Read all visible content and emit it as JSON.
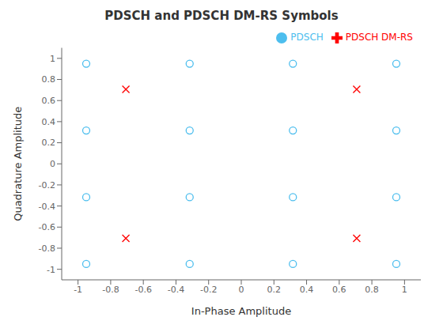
{
  "chart_data": {
    "type": "scatter",
    "title": "PDSCH and PDSCH DM-RS Symbols",
    "xlabel": "In-Phase Amplitude",
    "ylabel": "Quadrature Amplitude",
    "series": [
      {
        "name": "PDSCH",
        "color": "#4DBEEE",
        "marker": "circle",
        "x": [
          -0.9497,
          -0.9497,
          -0.9497,
          -0.9497,
          -0.3162,
          -0.3162,
          -0.3162,
          -0.3162,
          0.3162,
          0.3162,
          0.3162,
          0.3162,
          0.9497,
          0.9497,
          0.9497,
          0.9497
        ],
        "values": [
          0.9497,
          0.3162,
          -0.3162,
          -0.9497,
          0.9497,
          0.3162,
          -0.3162,
          -0.9497,
          0.9497,
          0.3162,
          -0.3162,
          -0.9497,
          0.9497,
          0.3162,
          -0.3162,
          -0.9497
        ]
      },
      {
        "name": "PDSCH DM-RS",
        "color": "#FF0000",
        "marker": "x",
        "x": [
          -0.7071,
          -0.7071,
          0.7071,
          0.7071
        ],
        "values": [
          0.7071,
          -0.7071,
          0.7071,
          -0.7071
        ]
      }
    ],
    "xlim": [
      -1.1,
      1.1
    ],
    "ylim": [
      -1.1,
      1.1
    ],
    "xticks": [
      -1.0,
      -0.8,
      -0.6,
      -0.4,
      -0.2,
      0.0,
      0.2,
      0.4,
      0.6,
      0.8,
      1.0
    ],
    "yticks": [
      -1.0,
      -0.8,
      -0.6,
      -0.4,
      -0.2,
      0.0,
      0.2,
      0.4,
      0.6,
      0.8,
      1.0
    ],
    "legend": "upper right",
    "grid": false
  }
}
